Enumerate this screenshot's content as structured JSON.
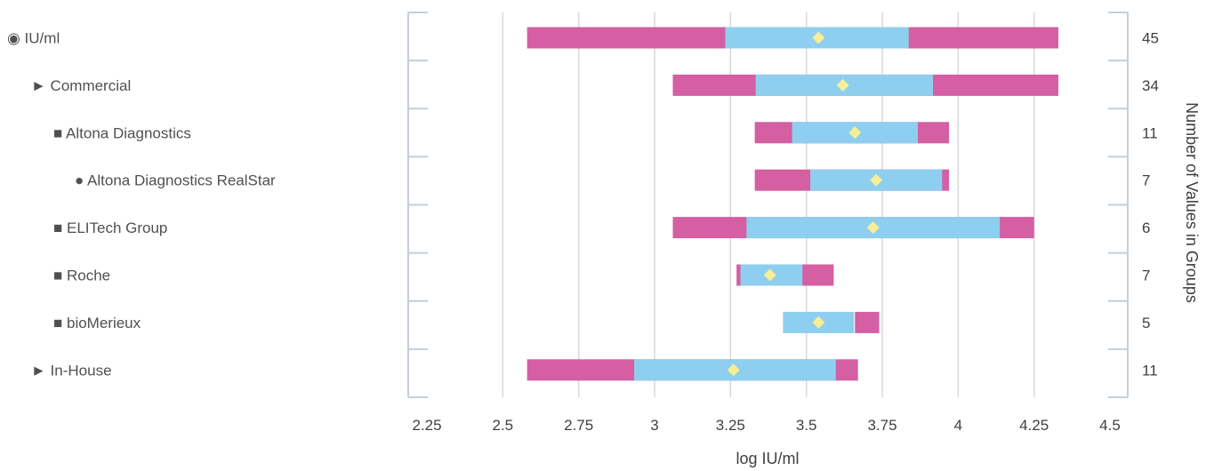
{
  "chart_data": {
    "type": "bar",
    "orientation": "horizontal",
    "subtype": "range-box",
    "xlabel": "log IU/ml",
    "y2label": "Number of Values in Groups",
    "xlim": [
      2.25,
      4.5
    ],
    "xticks": [
      "2.25",
      "2.5",
      "2.75",
      "3",
      "3.25",
      "3.5",
      "3.75",
      "4",
      "4.25",
      "4.5"
    ],
    "grid": true,
    "colors": {
      "outer": "#d45fa3",
      "inner": "#8ecff0",
      "mean": "#f7ee96",
      "axis": "#c5ced9",
      "grid": "#d8d8d8"
    },
    "rows": [
      {
        "label": "◉ IU/ml",
        "level": 0,
        "min": 2.58,
        "q1": 3.23,
        "q3": 3.84,
        "max": 4.33,
        "mean": 3.54,
        "count": "45"
      },
      {
        "label": "► Commercial",
        "level": 1,
        "min": 3.06,
        "q1": 3.33,
        "q3": 3.92,
        "max": 4.33,
        "mean": 3.62,
        "count": "34"
      },
      {
        "label": "■ Altona Diagnostics",
        "level": 2,
        "min": 3.33,
        "q1": 3.45,
        "q3": 3.87,
        "max": 3.97,
        "mean": 3.66,
        "count": "11"
      },
      {
        "label": "● Altona Diagnostics RealStar",
        "level": 3,
        "min": 3.33,
        "q1": 3.51,
        "q3": 3.95,
        "max": 3.97,
        "mean": 3.73,
        "count": "7"
      },
      {
        "label": "■ ELITech Group",
        "level": 2,
        "min": 3.06,
        "q1": 3.3,
        "q3": 4.14,
        "max": 4.25,
        "mean": 3.72,
        "count": "6"
      },
      {
        "label": "■ Roche",
        "level": 2,
        "min": 3.27,
        "q1": 3.28,
        "q3": 3.49,
        "max": 3.59,
        "mean": 3.38,
        "count": "7"
      },
      {
        "label": "■ bioMerieux",
        "level": 2,
        "min": null,
        "q1": 3.42,
        "q3": 3.66,
        "max": 3.74,
        "mean": 3.54,
        "count": "5"
      },
      {
        "label": "► In-House",
        "level": 1,
        "min": 2.58,
        "q1": 2.93,
        "q3": 3.6,
        "max": 3.67,
        "mean": 3.26,
        "count": "11"
      }
    ]
  }
}
